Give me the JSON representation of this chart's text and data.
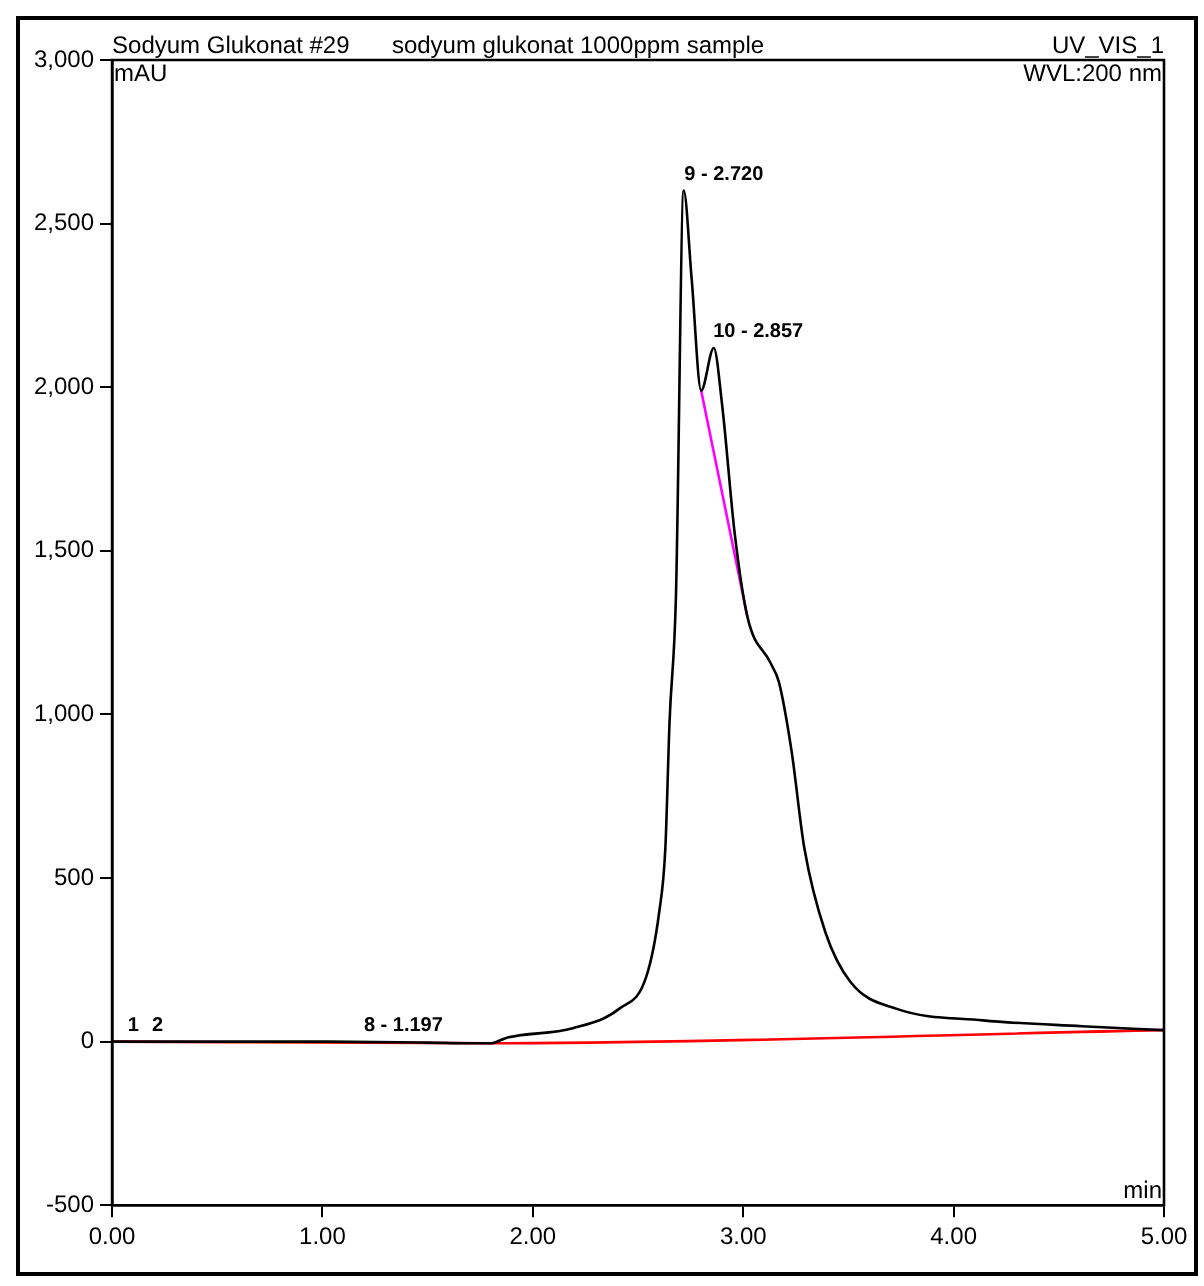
{
  "chart_data": {
    "type": "line",
    "title": "Sodyum Glukonat #29",
    "subtitle": "sodyum glukonat 1000ppm sample",
    "xlabel": "min",
    "ylabel": "mAU",
    "xlim": [
      0,
      5
    ],
    "xticks": [
      {
        "value": 0,
        "label": "0.00"
      },
      {
        "value": 1,
        "label": "1.00"
      },
      {
        "value": 2,
        "label": "2.00"
      },
      {
        "value": 3,
        "label": "3.00"
      },
      {
        "value": 4,
        "label": "4.00"
      },
      {
        "value": 5,
        "label": "5.00"
      }
    ],
    "ylim": [
      -500,
      3000
    ],
    "yticks": [
      -500,
      0,
      500,
      {
        "value": 1000,
        "label": "1,000"
      },
      {
        "value": 1500,
        "label": "1,500"
      },
      {
        "value": 2000,
        "label": "2,000"
      },
      {
        "value": 2500,
        "label": "2,500"
      },
      {
        "value": 3000,
        "label": "3,000"
      }
    ],
    "series": [
      {
        "color": "#000000",
        "x": [
          0,
          0.5,
          1.0,
          1.5,
          1.7,
          1.8,
          1.877,
          2.19,
          2.41,
          2.54,
          2.6,
          2.63,
          2.65,
          2.68,
          2.717,
          2.755,
          2.8,
          2.86,
          2.9,
          2.96,
          3.02,
          3.13,
          3.17,
          3.23,
          3.29,
          3.39,
          3.51,
          3.73,
          4.14,
          4.61,
          5.0
        ],
        "values": [
          0,
          0,
          0,
          -3,
          -5,
          -5,
          12,
          41,
          100,
          200,
          393,
          593,
          980,
          1356,
          2601,
          2330,
          1990,
          2120,
          1944,
          1550,
          1298,
          1157,
          1098,
          887,
          593,
          335,
          182,
          100,
          65,
          47,
          35
        ]
      },
      {
        "color": "#ff0000",
        "x": [
          0,
          1.8,
          5.0
        ],
        "values": [
          0,
          -5,
          35
        ]
      },
      {
        "color": "#ff00ff",
        "x": [
          2.8,
          3.02
        ],
        "values": [
          1990,
          1298
        ]
      }
    ],
    "annotations": [
      "UV_VIS_1",
      "WVL:200 nm",
      {
        "text": "1",
        "x": 0.075,
        "y": 0
      },
      {
        "text": "2",
        "x": 0.19,
        "y": 0
      },
      {
        "text": "8 - 1.197",
        "x": 1.197,
        "y": 0
      },
      {
        "text": "9 - 2.720",
        "x": 2.72,
        "y": 2601
      },
      {
        "text": "10 - 2.857",
        "x": 2.857,
        "y": 2120
      }
    ],
    "legend": false,
    "grid": false,
    "marker": "none",
    "line_style": "solid"
  }
}
